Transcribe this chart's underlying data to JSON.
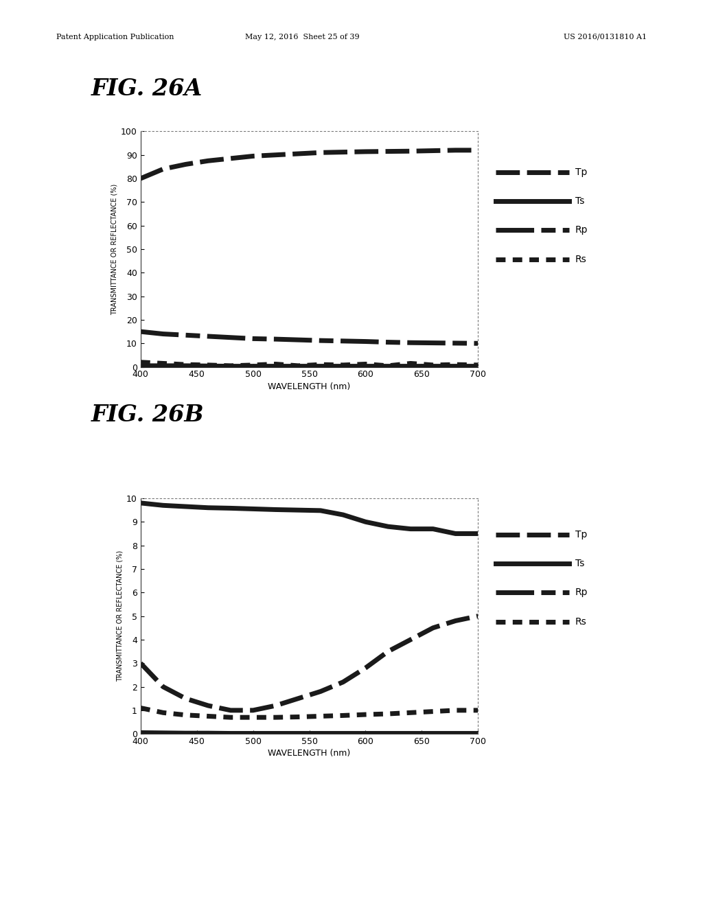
{
  "fig_title_a": "FIG. 26A",
  "fig_title_b": "FIG. 26B",
  "wavelength_start": 400,
  "wavelength_end": 700,
  "xlabel": "WAVELENGTH (nm)",
  "ylabel": "TRANSMITTANCE OR REFLECTANCE (%)",
  "xticks": [
    400,
    450,
    500,
    550,
    600,
    650,
    700
  ],
  "header_left": "Patent Application Publication",
  "header_mid": "May 12, 2016  Sheet 25 of 39",
  "header_right": "US 2016/0131810 A1",
  "plot_a": {
    "ylim": [
      0,
      100
    ],
    "yticks": [
      0,
      10,
      20,
      30,
      40,
      50,
      60,
      70,
      80,
      90,
      100
    ],
    "Tp": {
      "wavelengths": [
        400,
        420,
        440,
        460,
        480,
        500,
        520,
        540,
        560,
        580,
        600,
        620,
        640,
        660,
        680,
        700
      ],
      "values": [
        80,
        84,
        86,
        87.5,
        88.5,
        89.5,
        90,
        90.5,
        91,
        91.2,
        91.4,
        91.5,
        91.6,
        91.8,
        92,
        92
      ]
    },
    "Ts": {
      "wavelengths": [
        400,
        420,
        440,
        460,
        480,
        500,
        520,
        540,
        560,
        580,
        600,
        620,
        640,
        660,
        680,
        700
      ],
      "values": [
        0.5,
        0.5,
        0.5,
        0.4,
        0.3,
        0.3,
        0.3,
        0.3,
        0.3,
        0.3,
        0.3,
        0.3,
        0.3,
        0.3,
        0.3,
        0.3
      ]
    },
    "Rp": {
      "wavelengths": [
        400,
        420,
        440,
        460,
        480,
        500,
        520,
        540,
        560,
        580,
        600,
        620,
        640,
        660,
        680,
        700
      ],
      "values": [
        15,
        14,
        13.5,
        13,
        12.5,
        12,
        11.8,
        11.5,
        11.2,
        11,
        10.8,
        10.5,
        10.3,
        10.2,
        10.1,
        10
      ]
    },
    "Rs": {
      "wavelengths": [
        400,
        420,
        440,
        460,
        480,
        500,
        520,
        540,
        560,
        580,
        600,
        620,
        640,
        660,
        680,
        700
      ],
      "values": [
        2,
        1.5,
        1,
        0.8,
        0.5,
        0.8,
        1.2,
        0.5,
        1.0,
        0.8,
        1.2,
        0.5,
        1.5,
        0.8,
        1.0,
        0.8
      ]
    }
  },
  "plot_b": {
    "ylim": [
      0,
      10
    ],
    "yticks": [
      0,
      1,
      2,
      3,
      4,
      5,
      6,
      7,
      8,
      9,
      10
    ],
    "Tp": {
      "wavelengths": [
        400,
        420,
        440,
        460,
        480,
        500,
        520,
        540,
        560,
        580,
        600,
        620,
        640,
        660,
        680,
        700
      ],
      "values": [
        9.8,
        9.7,
        9.65,
        9.6,
        9.58,
        9.55,
        9.52,
        9.5,
        9.48,
        9.3,
        9.0,
        8.8,
        8.7,
        8.7,
        8.5,
        8.5
      ]
    },
    "Ts": {
      "wavelengths": [
        400,
        420,
        440,
        460,
        480,
        500,
        520,
        540,
        560,
        580,
        600,
        620,
        640,
        660,
        680,
        700
      ],
      "values": [
        0.05,
        0.04,
        0.03,
        0.03,
        0.02,
        0.02,
        0.02,
        0.02,
        0.02,
        0.02,
        0.02,
        0.02,
        0.02,
        0.02,
        0.02,
        0.02
      ]
    },
    "Rp": {
      "wavelengths": [
        400,
        420,
        440,
        460,
        480,
        500,
        520,
        540,
        560,
        580,
        600,
        620,
        640,
        660,
        680,
        700
      ],
      "values": [
        3.0,
        2.0,
        1.5,
        1.2,
        1.0,
        1.0,
        1.2,
        1.5,
        1.8,
        2.2,
        2.8,
        3.5,
        4.0,
        4.5,
        4.8,
        5.0
      ]
    },
    "Rs": {
      "wavelengths": [
        400,
        420,
        440,
        460,
        480,
        500,
        520,
        540,
        560,
        580,
        600,
        620,
        640,
        660,
        680,
        700
      ],
      "values": [
        1.1,
        0.9,
        0.8,
        0.75,
        0.7,
        0.7,
        0.7,
        0.72,
        0.75,
        0.78,
        0.82,
        0.85,
        0.9,
        0.95,
        1.0,
        1.0
      ]
    }
  },
  "background_color": "#ffffff",
  "text_color": "#000000",
  "line_color": "#1a1a1a",
  "line_lw": 5
}
